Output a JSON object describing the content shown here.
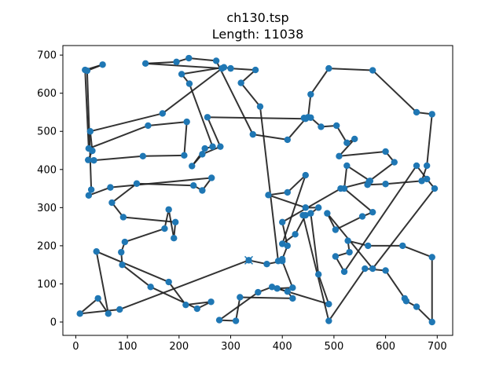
{
  "chart_data": {
    "type": "line",
    "title": "ch130.tsp",
    "subtitle": "Length: 11038",
    "xlabel": "",
    "ylabel": "",
    "xlim": [
      -25,
      730
    ],
    "ylim": [
      -35,
      725
    ],
    "xticks": [
      0,
      100,
      200,
      300,
      400,
      500,
      600,
      700
    ],
    "yticks": [
      0,
      100,
      200,
      300,
      400,
      500,
      600,
      700
    ],
    "grid": false,
    "start_marker": [
      335,
      162
    ],
    "tour": [
      [
        335,
        162
      ],
      [
        370,
        152
      ],
      [
        400,
        160
      ],
      [
        420,
        90
      ],
      [
        390,
        88
      ],
      [
        410,
        80
      ],
      [
        420,
        62
      ],
      [
        318,
        65
      ],
      [
        310,
        3
      ],
      [
        278,
        5
      ],
      [
        353,
        78
      ],
      [
        380,
        92
      ],
      [
        490,
        47
      ],
      [
        470,
        125
      ],
      [
        455,
        285
      ],
      [
        470,
        300
      ],
      [
        445,
        300
      ],
      [
        373,
        333
      ],
      [
        410,
        340
      ],
      [
        445,
        385
      ],
      [
        400,
        205
      ],
      [
        425,
        230
      ],
      [
        445,
        280
      ],
      [
        440,
        280
      ],
      [
        490,
        3
      ],
      [
        560,
        140
      ],
      [
        600,
        135
      ],
      [
        637,
        62
      ],
      [
        640,
        55
      ],
      [
        660,
        40
      ],
      [
        690,
        0
      ],
      [
        690,
        170
      ],
      [
        633,
        200
      ],
      [
        566,
        200
      ],
      [
        527,
        213
      ],
      [
        530,
        183
      ],
      [
        503,
        172
      ],
      [
        520,
        132
      ],
      [
        660,
        410
      ],
      [
        680,
        375
      ],
      [
        695,
        350
      ],
      [
        575,
        140
      ],
      [
        487,
        285
      ],
      [
        503,
        242
      ],
      [
        555,
        277
      ],
      [
        575,
        288
      ],
      [
        520,
        350
      ],
      [
        525,
        410
      ],
      [
        570,
        370
      ],
      [
        565,
        360
      ],
      [
        600,
        362
      ],
      [
        670,
        370
      ],
      [
        680,
        410
      ],
      [
        690,
        545
      ],
      [
        660,
        550
      ],
      [
        575,
        660
      ],
      [
        490,
        665
      ],
      [
        455,
        597
      ],
      [
        450,
        537
      ],
      [
        442,
        535
      ],
      [
        455,
        536
      ],
      [
        475,
        512
      ],
      [
        505,
        515
      ],
      [
        525,
        470
      ],
      [
        540,
        480
      ],
      [
        510,
        435
      ],
      [
        600,
        447
      ],
      [
        617,
        419
      ],
      [
        568,
        369
      ],
      [
        513,
        350
      ],
      [
        400,
        262
      ],
      [
        410,
        200
      ],
      [
        400,
        165
      ],
      [
        392,
        160
      ],
      [
        357,
        565
      ],
      [
        320,
        627
      ],
      [
        348,
        661
      ],
      [
        300,
        665
      ],
      [
        287,
        668
      ],
      [
        205,
        650
      ],
      [
        220,
        625
      ],
      [
        265,
        460
      ],
      [
        250,
        455
      ],
      [
        225,
        409
      ],
      [
        245,
        440
      ],
      [
        280,
        460
      ],
      [
        255,
        537
      ],
      [
        445,
        533
      ],
      [
        410,
        478
      ],
      [
        343,
        492
      ],
      [
        272,
        685
      ],
      [
        219,
        692
      ],
      [
        195,
        682
      ],
      [
        135,
        678
      ],
      [
        283,
        665
      ],
      [
        168,
        547
      ],
      [
        28,
        500
      ],
      [
        32,
        449
      ],
      [
        24,
        425
      ],
      [
        35,
        424
      ],
      [
        130,
        435
      ],
      [
        210,
        437
      ],
      [
        215,
        525
      ],
      [
        140,
        515
      ],
      [
        25,
        455
      ],
      [
        18,
        661
      ],
      [
        52,
        675
      ],
      [
        22,
        659
      ],
      [
        30,
        347
      ],
      [
        25,
        332
      ],
      [
        67,
        353
      ],
      [
        263,
        378
      ],
      [
        245,
        345
      ],
      [
        228,
        358
      ],
      [
        118,
        363
      ],
      [
        70,
        313
      ],
      [
        92,
        275
      ],
      [
        193,
        262
      ],
      [
        190,
        220
      ],
      [
        180,
        295
      ],
      [
        172,
        245
      ],
      [
        95,
        210
      ],
      [
        88,
        183
      ],
      [
        90,
        150
      ],
      [
        145,
        92
      ],
      [
        235,
        35
      ],
      [
        262,
        53
      ],
      [
        213,
        45
      ],
      [
        180,
        105
      ],
      [
        40,
        185
      ],
      [
        63,
        22
      ],
      [
        43,
        62
      ],
      [
        8,
        22
      ],
      [
        85,
        33
      ],
      [
        335,
        162
      ]
    ]
  }
}
